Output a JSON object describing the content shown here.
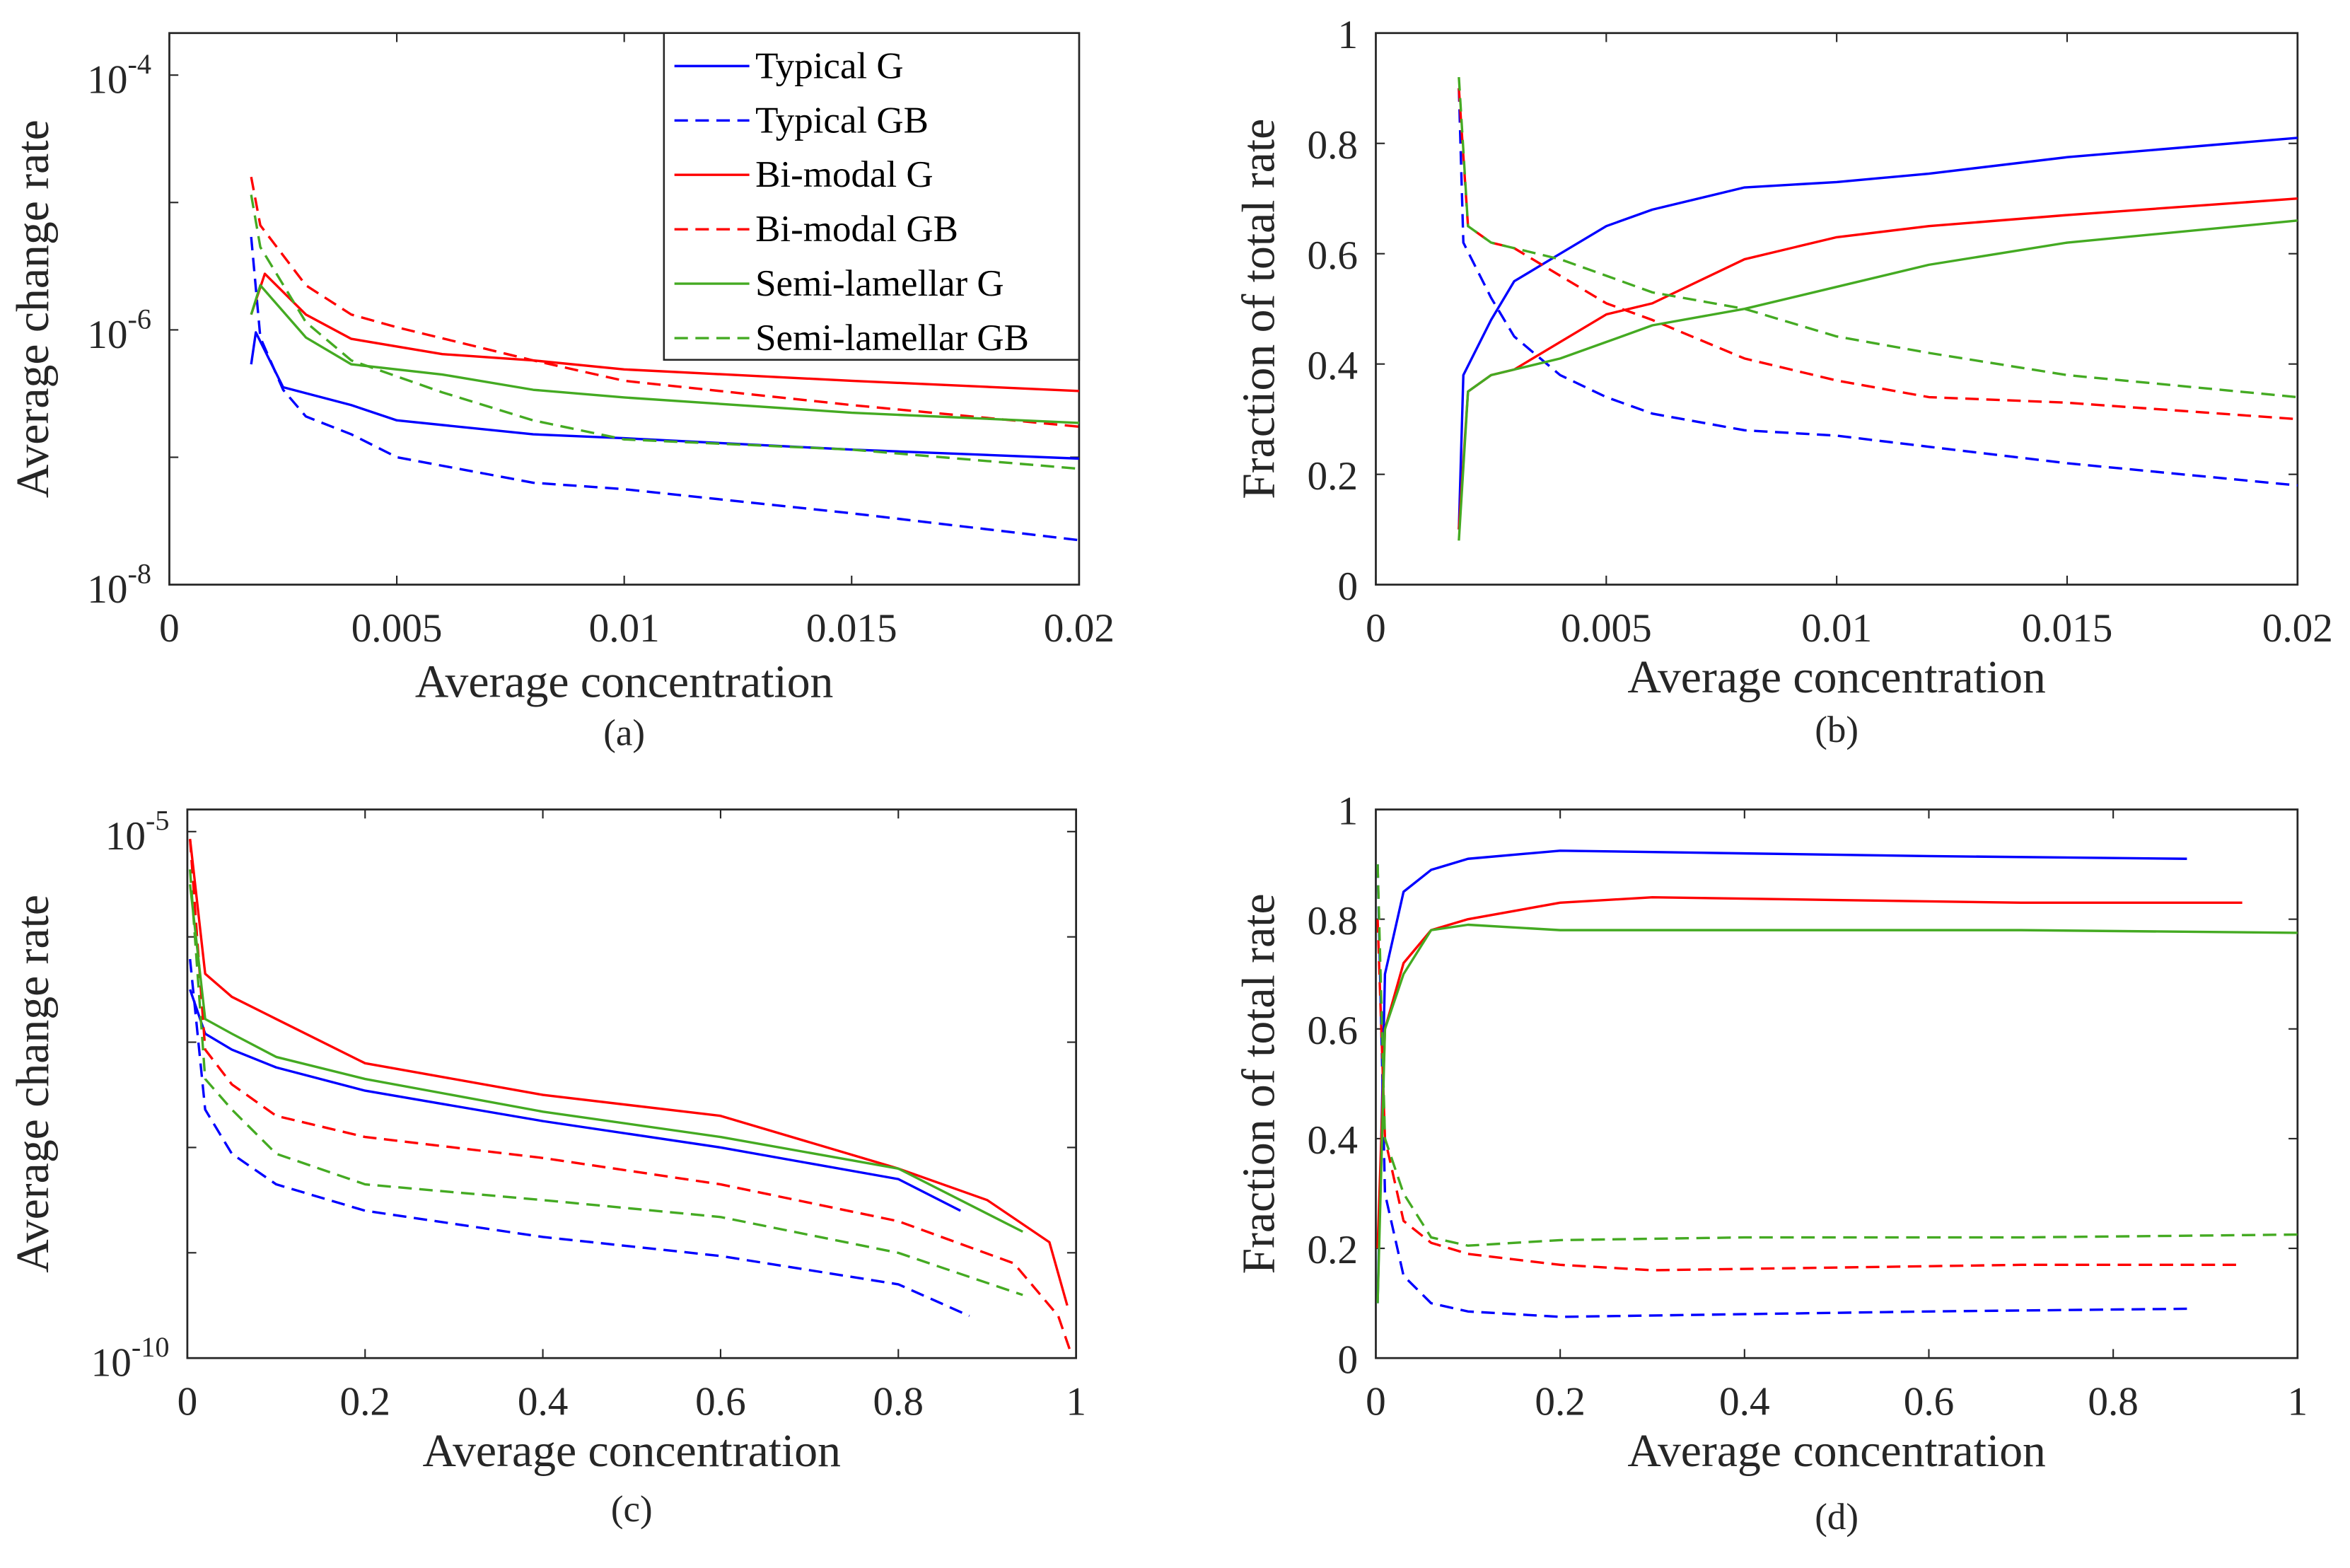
{
  "colors": {
    "blue": "#0000ff",
    "red": "#ff0000",
    "green": "#44aa22"
  },
  "chart_data": [
    {
      "panel": "(a)",
      "type": "line",
      "yscale": "log",
      "xlabel": "Average concentration",
      "ylabel": "Average change rate",
      "xlim": [
        0,
        0.02
      ],
      "ylim_log10": [
        -8,
        -3.67
      ],
      "xticks": [
        0,
        0.005,
        0.01,
        0.015,
        0.02
      ],
      "xtick_labels": [
        "0",
        "0.005",
        "0.01",
        "0.015",
        "0.02"
      ],
      "yticks_log10": [
        -8,
        -6,
        -4
      ],
      "ytick_base": "10",
      "ytick_exponents": [
        "-8",
        "-6",
        "-4"
      ],
      "legend": {
        "placement": "top-right",
        "entries": [
          "Typical G",
          "Typical GB",
          "Bi-modal G",
          "Bi-modal GB",
          "Semi-lamellar G",
          "Semi-lamellar GB"
        ]
      },
      "series": [
        {
          "name": "Typical G",
          "color": "blue",
          "dash": false,
          "x": [
            0.0018,
            0.0019,
            0.0025,
            0.004,
            0.005,
            0.008,
            0.01,
            0.015,
            0.02
          ],
          "y_log10": [
            -6.27,
            -6.02,
            -6.45,
            -6.59,
            -6.71,
            -6.82,
            -6.85,
            -6.94,
            -7.01
          ]
        },
        {
          "name": "Typical GB",
          "color": "blue",
          "dash": true,
          "x": [
            0.0018,
            0.002,
            0.0025,
            0.003,
            0.004,
            0.005,
            0.008,
            0.01,
            0.015,
            0.02
          ],
          "y_log10": [
            -5.27,
            -6.06,
            -6.47,
            -6.68,
            -6.82,
            -7.0,
            -7.2,
            -7.25,
            -7.44,
            -7.65
          ]
        },
        {
          "name": "Bi-modal G",
          "color": "red",
          "dash": false,
          "x": [
            0.0018,
            0.0021,
            0.003,
            0.004,
            0.006,
            0.008,
            0.01,
            0.015,
            0.02
          ],
          "y_log10": [
            -5.88,
            -5.56,
            -5.88,
            -6.07,
            -6.19,
            -6.24,
            -6.31,
            -6.4,
            -6.48
          ]
        },
        {
          "name": "Bi-modal GB",
          "color": "red",
          "dash": true,
          "x": [
            0.0018,
            0.002,
            0.003,
            0.004,
            0.005,
            0.008,
            0.01,
            0.015,
            0.02
          ],
          "y_log10": [
            -4.8,
            -5.18,
            -5.65,
            -5.88,
            -5.98,
            -6.24,
            -6.4,
            -6.59,
            -6.76
          ]
        },
        {
          "name": "Semi-lamellar G",
          "color": "green",
          "dash": false,
          "x": [
            0.0018,
            0.002,
            0.003,
            0.004,
            0.006,
            0.008,
            0.01,
            0.015,
            0.02
          ],
          "y_log10": [
            -5.88,
            -5.65,
            -6.06,
            -6.27,
            -6.35,
            -6.47,
            -6.53,
            -6.65,
            -6.73
          ]
        },
        {
          "name": "Semi-lamellar GB",
          "color": "green",
          "dash": true,
          "x": [
            0.0018,
            0.002,
            0.003,
            0.004,
            0.006,
            0.008,
            0.01,
            0.015,
            0.02
          ],
          "y_log10": [
            -4.94,
            -5.35,
            -5.94,
            -6.24,
            -6.49,
            -6.71,
            -6.86,
            -6.94,
            -7.09
          ]
        }
      ]
    },
    {
      "panel": "(b)",
      "type": "line",
      "yscale": "linear",
      "xlabel": "Average concentration",
      "ylabel": "Fraction of total rate",
      "xlim": [
        0,
        0.02
      ],
      "ylim": [
        0,
        1
      ],
      "xticks": [
        0,
        0.005,
        0.01,
        0.015,
        0.02
      ],
      "xtick_labels": [
        "0",
        "0.005",
        "0.01",
        "0.015",
        "0.02"
      ],
      "yticks": [
        0,
        0.2,
        0.4,
        0.6,
        0.8,
        1
      ],
      "ytick_labels": [
        "0",
        "0.2",
        "0.4",
        "0.6",
        "0.8",
        "1"
      ],
      "series": [
        {
          "name": "Typical G",
          "color": "blue",
          "dash": false,
          "x": [
            0.0018,
            0.0019,
            0.0025,
            0.003,
            0.004,
            0.005,
            0.006,
            0.008,
            0.01,
            0.012,
            0.015,
            0.02
          ],
          "y": [
            0.1,
            0.38,
            0.48,
            0.55,
            0.6,
            0.65,
            0.68,
            0.72,
            0.73,
            0.745,
            0.775,
            0.81
          ]
        },
        {
          "name": "Typical GB",
          "color": "blue",
          "dash": true,
          "x": [
            0.0018,
            0.0019,
            0.0025,
            0.003,
            0.004,
            0.005,
            0.006,
            0.008,
            0.01,
            0.012,
            0.015,
            0.02
          ],
          "y": [
            0.9,
            0.62,
            0.52,
            0.45,
            0.38,
            0.34,
            0.31,
            0.28,
            0.27,
            0.25,
            0.22,
            0.18
          ]
        },
        {
          "name": "Bi-modal G",
          "color": "red",
          "dash": false,
          "x": [
            0.0018,
            0.002,
            0.0025,
            0.003,
            0.004,
            0.005,
            0.006,
            0.008,
            0.01,
            0.012,
            0.015,
            0.02
          ],
          "y": [
            0.1,
            0.35,
            0.38,
            0.39,
            0.44,
            0.49,
            0.51,
            0.59,
            0.63,
            0.65,
            0.67,
            0.7
          ]
        },
        {
          "name": "Bi-modal GB",
          "color": "red",
          "dash": true,
          "x": [
            0.0018,
            0.002,
            0.0025,
            0.003,
            0.004,
            0.005,
            0.006,
            0.008,
            0.01,
            0.012,
            0.015,
            0.02
          ],
          "y": [
            0.9,
            0.65,
            0.62,
            0.61,
            0.56,
            0.51,
            0.48,
            0.41,
            0.37,
            0.34,
            0.33,
            0.3
          ]
        },
        {
          "name": "Semi-lamellar G",
          "color": "green",
          "dash": false,
          "x": [
            0.0018,
            0.002,
            0.0025,
            0.003,
            0.004,
            0.005,
            0.006,
            0.008,
            0.01,
            0.012,
            0.015,
            0.02
          ],
          "y": [
            0.08,
            0.35,
            0.38,
            0.39,
            0.41,
            0.44,
            0.47,
            0.5,
            0.54,
            0.58,
            0.62,
            0.66
          ]
        },
        {
          "name": "Semi-lamellar GB",
          "color": "green",
          "dash": true,
          "x": [
            0.0018,
            0.002,
            0.0025,
            0.003,
            0.004,
            0.005,
            0.006,
            0.008,
            0.01,
            0.012,
            0.015,
            0.02
          ],
          "y": [
            0.92,
            0.65,
            0.62,
            0.61,
            0.59,
            0.56,
            0.53,
            0.5,
            0.45,
            0.42,
            0.38,
            0.34
          ]
        }
      ]
    },
    {
      "panel": "(c)",
      "type": "line",
      "yscale": "log",
      "xlabel": "Average concentration",
      "ylabel": "Average change rate",
      "xlim": [
        0,
        1
      ],
      "ylim_log10": [
        -10,
        -4.79
      ],
      "xticks": [
        0,
        0.2,
        0.4,
        0.6,
        0.8,
        1
      ],
      "xtick_labels": [
        "0",
        "0.2",
        "0.4",
        "0.6",
        "0.8",
        "1"
      ],
      "yticks_log10": [
        -10,
        -5
      ],
      "ytick_base": "10",
      "ytick_exponents": [
        "-10",
        "-5"
      ],
      "series": [
        {
          "name": "Typical G",
          "color": "blue",
          "dash": false,
          "x": [
            0.003,
            0.02,
            0.05,
            0.1,
            0.2,
            0.4,
            0.6,
            0.8,
            0.87
          ],
          "y_log10": [
            -6.5,
            -6.92,
            -7.07,
            -7.24,
            -7.46,
            -7.75,
            -8.0,
            -8.3,
            -8.6
          ]
        },
        {
          "name": "Typical GB",
          "color": "blue",
          "dash": true,
          "x": [
            0.003,
            0.02,
            0.05,
            0.1,
            0.2,
            0.4,
            0.6,
            0.8,
            0.88
          ],
          "y_log10": [
            -6.21,
            -7.64,
            -8.06,
            -8.35,
            -8.6,
            -8.85,
            -9.03,
            -9.3,
            -9.6
          ]
        },
        {
          "name": "Bi-modal G",
          "color": "red",
          "dash": false,
          "x": [
            0.003,
            0.02,
            0.05,
            0.1,
            0.2,
            0.4,
            0.6,
            0.8,
            0.9,
            0.97,
            0.99
          ],
          "y_log10": [
            -5.07,
            -6.35,
            -6.57,
            -6.78,
            -7.2,
            -7.5,
            -7.7,
            -8.2,
            -8.5,
            -8.9,
            -9.5
          ]
        },
        {
          "name": "Bi-modal GB",
          "color": "red",
          "dash": true,
          "x": [
            0.003,
            0.02,
            0.05,
            0.1,
            0.2,
            0.4,
            0.6,
            0.8,
            0.93,
            0.98,
            0.995
          ],
          "y_log10": [
            -5.07,
            -7.07,
            -7.4,
            -7.7,
            -7.9,
            -8.1,
            -8.35,
            -8.7,
            -9.1,
            -9.6,
            -9.97
          ]
        },
        {
          "name": "Semi-lamellar G",
          "color": "green",
          "dash": false,
          "x": [
            0.003,
            0.02,
            0.05,
            0.1,
            0.2,
            0.4,
            0.6,
            0.8,
            0.94
          ],
          "y_log10": [
            -5.5,
            -6.78,
            -6.92,
            -7.14,
            -7.35,
            -7.66,
            -7.9,
            -8.2,
            -8.8
          ]
        },
        {
          "name": "Semi-lamellar GB",
          "color": "green",
          "dash": true,
          "x": [
            0.003,
            0.02,
            0.05,
            0.1,
            0.2,
            0.4,
            0.6,
            0.8,
            0.94
          ],
          "y_log10": [
            -5.36,
            -7.35,
            -7.64,
            -8.06,
            -8.35,
            -8.5,
            -8.66,
            -9.0,
            -9.4
          ]
        }
      ]
    },
    {
      "panel": "(d)",
      "type": "line",
      "yscale": "linear",
      "xlabel": "Average concentration",
      "ylabel": "Fraction of total rate",
      "xlim": [
        0,
        1
      ],
      "ylim": [
        0,
        1
      ],
      "xticks": [
        0,
        0.2,
        0.4,
        0.6,
        0.8,
        1
      ],
      "xtick_labels": [
        "0",
        "0.2",
        "0.4",
        "0.6",
        "0.8",
        "1"
      ],
      "yticks": [
        0,
        0.2,
        0.4,
        0.6,
        0.8,
        1
      ],
      "ytick_labels": [
        "0",
        "0.2",
        "0.4",
        "0.6",
        "0.8",
        "1"
      ],
      "series": [
        {
          "name": "Typical G",
          "color": "blue",
          "dash": false,
          "x": [
            0.002,
            0.01,
            0.03,
            0.06,
            0.1,
            0.2,
            0.4,
            0.6,
            0.88
          ],
          "y": [
            0.1,
            0.7,
            0.85,
            0.89,
            0.91,
            0.925,
            0.92,
            0.915,
            0.91
          ]
        },
        {
          "name": "Typical GB",
          "color": "blue",
          "dash": true,
          "x": [
            0.002,
            0.01,
            0.03,
            0.06,
            0.1,
            0.2,
            0.4,
            0.6,
            0.88
          ],
          "y": [
            0.9,
            0.3,
            0.15,
            0.1,
            0.085,
            0.075,
            0.08,
            0.085,
            0.09
          ]
        },
        {
          "name": "Bi-modal G",
          "color": "red",
          "dash": false,
          "x": [
            0.002,
            0.01,
            0.03,
            0.06,
            0.1,
            0.2,
            0.3,
            0.5,
            0.7,
            0.94
          ],
          "y": [
            0.2,
            0.6,
            0.72,
            0.78,
            0.8,
            0.83,
            0.84,
            0.835,
            0.83,
            0.83
          ]
        },
        {
          "name": "Bi-modal GB",
          "color": "red",
          "dash": true,
          "x": [
            0.002,
            0.01,
            0.03,
            0.06,
            0.1,
            0.2,
            0.3,
            0.5,
            0.7,
            0.94
          ],
          "y": [
            0.8,
            0.4,
            0.25,
            0.21,
            0.19,
            0.17,
            0.16,
            0.165,
            0.17,
            0.17
          ]
        },
        {
          "name": "Semi-lamellar G",
          "color": "green",
          "dash": false,
          "x": [
            0.002,
            0.01,
            0.03,
            0.06,
            0.1,
            0.2,
            0.4,
            0.7,
            1.0
          ],
          "y": [
            0.1,
            0.6,
            0.7,
            0.78,
            0.79,
            0.78,
            0.78,
            0.78,
            0.775
          ]
        },
        {
          "name": "Semi-lamellar GB",
          "color": "green",
          "dash": true,
          "x": [
            0.002,
            0.01,
            0.03,
            0.06,
            0.1,
            0.2,
            0.4,
            0.7,
            1.0
          ],
          "y": [
            0.9,
            0.4,
            0.3,
            0.22,
            0.205,
            0.215,
            0.22,
            0.22,
            0.225
          ]
        }
      ]
    }
  ]
}
